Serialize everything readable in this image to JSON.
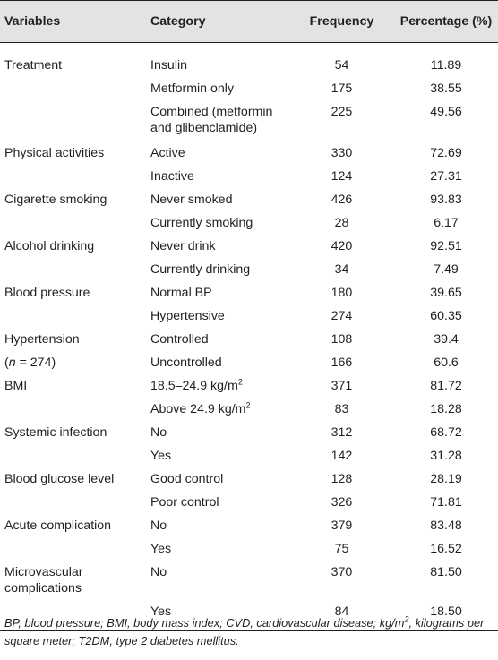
{
  "headers": [
    "Variables",
    "Category",
    "Frequency",
    "Percentage (%)"
  ],
  "rows": [
    {
      "variable": "Treatment",
      "category": "Insulin",
      "frequency": "54",
      "percentage": "11.89"
    },
    {
      "variable": "",
      "category": "Metformin only",
      "frequency": "175",
      "percentage": "38.55"
    },
    {
      "variable": "",
      "category": "Combined (metformin and glibenclamide)",
      "frequency": "225",
      "percentage": "49.56"
    },
    {
      "variable": "Physical activities",
      "category": "Active",
      "frequency": "330",
      "percentage": "72.69"
    },
    {
      "variable": "",
      "category": "Inactive",
      "frequency": "124",
      "percentage": "27.31"
    },
    {
      "variable": "Cigarette smoking",
      "category": "Never smoked",
      "frequency": "426",
      "percentage": "93.83"
    },
    {
      "variable": "",
      "category": "Currently smoking",
      "frequency": "28",
      "percentage": "6.17"
    },
    {
      "variable": "Alcohol drinking",
      "category": "Never drink",
      "frequency": "420",
      "percentage": "92.51"
    },
    {
      "variable": "",
      "category": "Currently drinking",
      "frequency": "34",
      "percentage": "7.49"
    },
    {
      "variable": "Blood pressure",
      "category": "Normal BP",
      "frequency": "180",
      "percentage": "39.65"
    },
    {
      "variable": "",
      "category": "Hypertensive",
      "frequency": "274",
      "percentage": "60.35"
    },
    {
      "variable": "Hypertension",
      "category": "Controlled",
      "frequency": "108",
      "percentage": "39.4"
    },
    {
      "variable_n": "n",
      "variable_rest": " = 274)",
      "variable_open": "(",
      "category": "Uncontrolled",
      "frequency": "166",
      "percentage": "60.6"
    },
    {
      "variable": "BMI",
      "category_base": "18.5–24.9 kg/m",
      "category_sup": "2",
      "frequency": "371",
      "percentage": "81.72"
    },
    {
      "variable": "",
      "category_base": "Above 24.9 kg/m",
      "category_sup": "2",
      "frequency": "83",
      "percentage": "18.28"
    },
    {
      "variable": "Systemic infection",
      "category": "No",
      "frequency": "312",
      "percentage": "68.72"
    },
    {
      "variable": "",
      "category": "Yes",
      "frequency": "142",
      "percentage": "31.28"
    },
    {
      "variable": "Blood glucose level",
      "category": "Good control",
      "frequency": "128",
      "percentage": "28.19"
    },
    {
      "variable": "",
      "category": "Poor control",
      "frequency": "326",
      "percentage": "71.81"
    },
    {
      "variable": "Acute complication",
      "category": "No",
      "frequency": "379",
      "percentage": "83.48"
    },
    {
      "variable": "",
      "category": "Yes",
      "frequency": "75",
      "percentage": "16.52"
    },
    {
      "variable": "Microvascular complications",
      "category": "No",
      "frequency": "370",
      "percentage": "81.50"
    },
    {
      "variable": "",
      "category": "Yes",
      "frequency": "84",
      "percentage": "18.50"
    }
  ],
  "footnote": {
    "part1": "BP, blood pressure; BMI, body mass index; CVD, cardiovascular disease; kg/m",
    "sup": "2",
    "part2": ", kilograms per square meter; T2DM, type 2 diabetes mellitus."
  }
}
